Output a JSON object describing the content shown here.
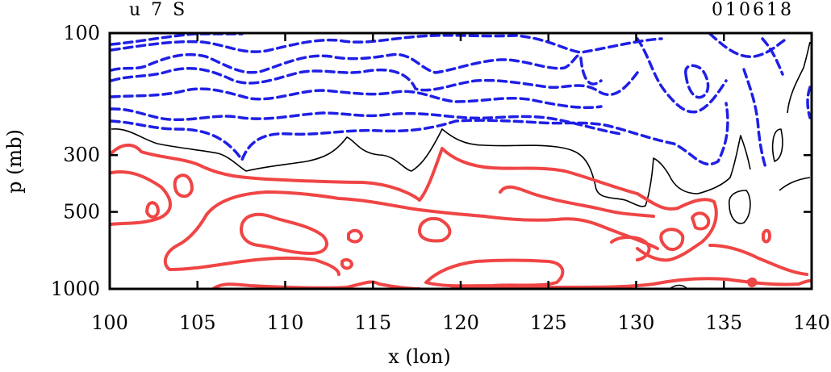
{
  "chart_data": {
    "type": "contour",
    "title_left": "u 7 S",
    "title_right": "010618",
    "xlabel": "x (lon)",
    "ylabel": "p (mb)",
    "xlim": [
      100,
      140
    ],
    "ylim": [
      1000,
      100
    ],
    "y_scale": "log",
    "x_ticks": [
      100,
      105,
      110,
      115,
      120,
      125,
      130,
      135,
      140
    ],
    "x_tick_labels": [
      "100",
      "105",
      "110",
      "115",
      "120",
      "125",
      "130",
      "135",
      "140"
    ],
    "y_ticks": [
      100,
      300,
      500,
      1000
    ],
    "y_tick_labels": [
      "100",
      "300",
      "500",
      "1000"
    ],
    "contour_styles": {
      "negative": {
        "color": "#1f1fe6",
        "dash": "dashed"
      },
      "zero": {
        "color": "#000000",
        "dash": "solid"
      },
      "positive": {
        "color": "#f04545",
        "dash": "solid"
      }
    }
  }
}
